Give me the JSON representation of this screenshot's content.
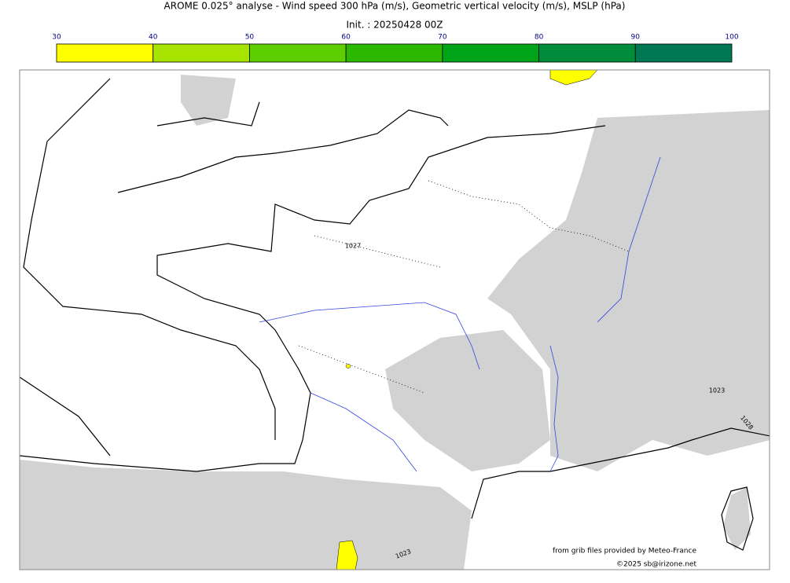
{
  "header": {
    "title": "AROME 0.025° analyse - Wind speed 300 hPa (m/s), Geometric vertical velocity (m/s), MSLP (hPa)",
    "init": "Init. : 20250428 00Z"
  },
  "colorbar": {
    "ticks": [
      30,
      40,
      50,
      60,
      70,
      80,
      90,
      100
    ],
    "colors": [
      "#ffff00",
      "#a6e400",
      "#5dcf00",
      "#2db800",
      "#00a418",
      "#008c3a",
      "#007852"
    ]
  },
  "map": {
    "contour_labels": [
      "1027",
      "1023",
      "1028",
      "1023"
    ]
  },
  "footer": {
    "source": "from grib files provided by Meteo-France",
    "copyright": "©2025 sb@irizone.net"
  }
}
